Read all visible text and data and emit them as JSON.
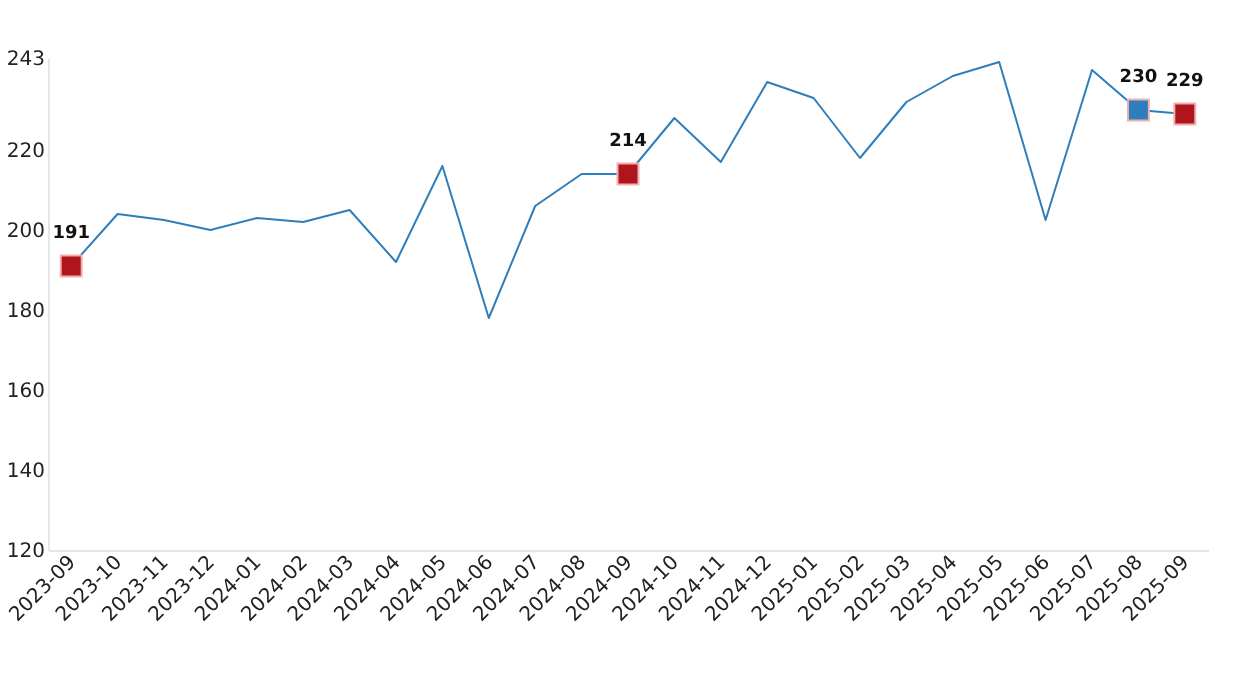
{
  "chart_data": {
    "type": "line",
    "categories": [
      "2023-09",
      "2023-10",
      "2023-11",
      "2023-12",
      "2024-01",
      "2024-02",
      "2024-03",
      "2024-04",
      "2024-05",
      "2024-06",
      "2024-07",
      "2024-08",
      "2024-09",
      "2024-10",
      "2024-11",
      "2024-12",
      "2025-01",
      "2025-02",
      "2025-03",
      "2025-04",
      "2025-05",
      "2025-06",
      "2025-07",
      "2025-08",
      "2025-09"
    ],
    "series": [
      {
        "color": "#2f7ebc",
        "values": [
          191,
          204,
          202.5,
          200,
          203,
          202,
          205,
          192,
          216,
          178,
          206,
          214,
          214,
          228,
          217,
          237,
          233,
          218,
          232,
          238.5,
          242,
          202.5,
          240,
          230,
          229
        ]
      },
      {
        "type": "scatter",
        "marker": "square",
        "values": [
          191,
          null,
          null,
          null,
          null,
          null,
          null,
          null,
          null,
          null,
          null,
          null,
          214,
          null,
          null,
          null,
          null,
          null,
          null,
          null,
          null,
          null,
          null,
          230,
          229
        ],
        "colors": [
          "#b0141d",
          null,
          null,
          null,
          null,
          null,
          null,
          null,
          null,
          null,
          null,
          null,
          "#b0141d",
          null,
          null,
          null,
          null,
          null,
          null,
          null,
          null,
          null,
          null,
          "#2f7ebc",
          "#b0141d"
        ],
        "value_labels": [
          "191",
          null,
          null,
          null,
          null,
          null,
          null,
          null,
          null,
          null,
          null,
          null,
          "214",
          null,
          null,
          null,
          null,
          null,
          null,
          null,
          null,
          null,
          null,
          "230",
          "229"
        ]
      }
    ],
    "ylim": [
      120,
      243
    ],
    "yticks": [
      120,
      140,
      160,
      180,
      200,
      220,
      243
    ],
    "grid": false,
    "marker": "none",
    "line_style": "solid"
  }
}
